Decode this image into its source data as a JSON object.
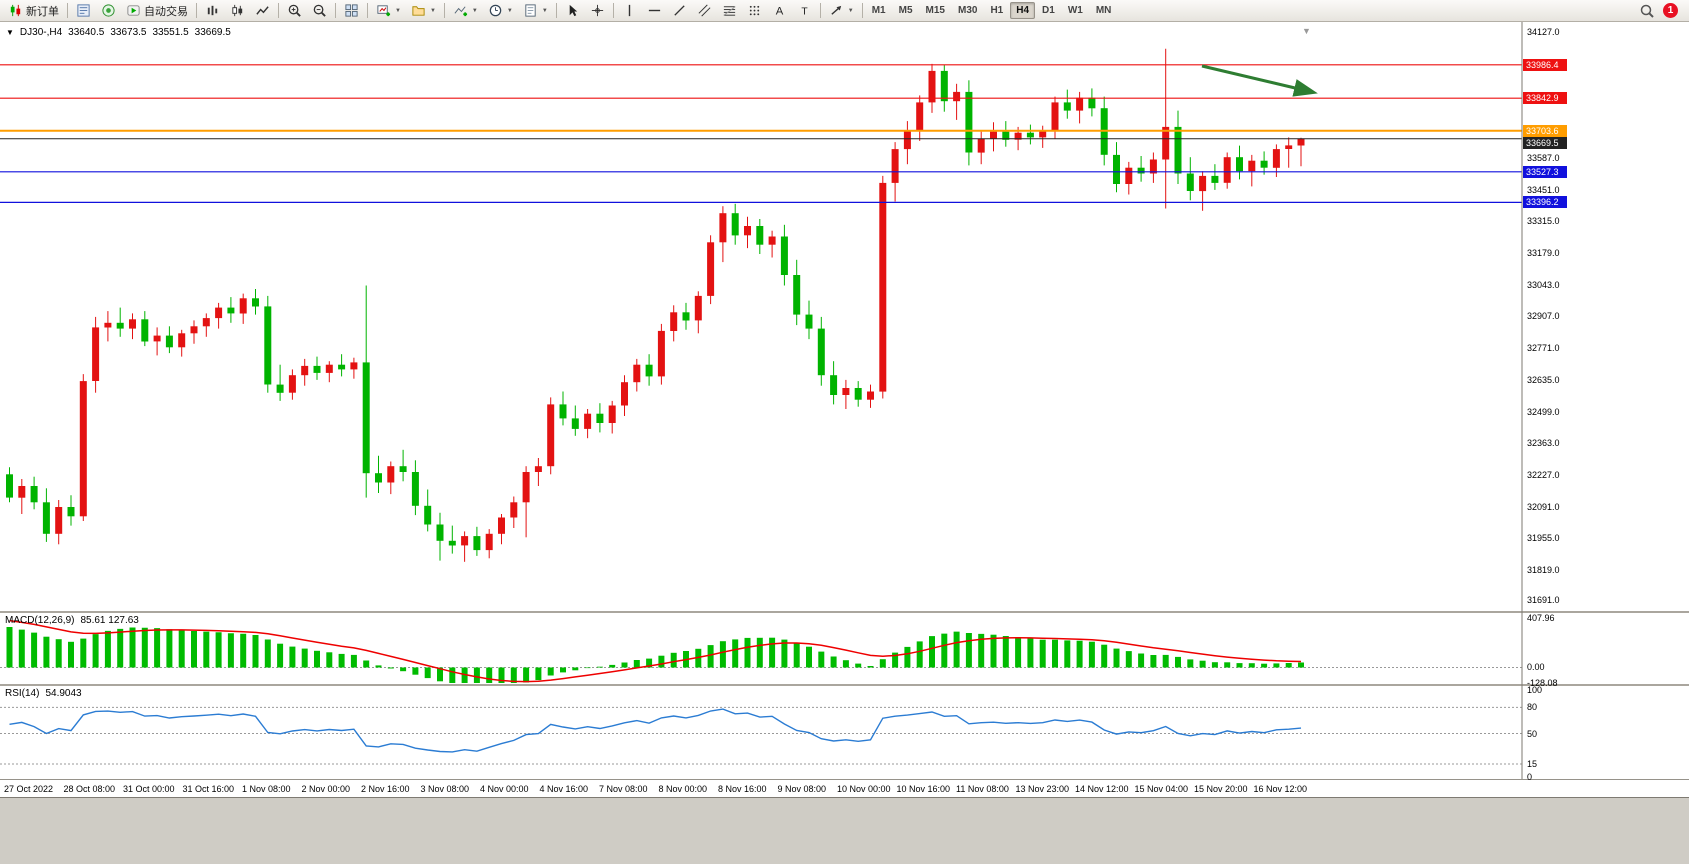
{
  "toolbar": {
    "new_order_label": "新订单",
    "autotrading_label": "自动交易",
    "timeframes": [
      "M1",
      "M5",
      "M15",
      "M30",
      "H1",
      "H4",
      "D1",
      "W1",
      "MN"
    ],
    "active_timeframe": "H4",
    "notification_count": "1"
  },
  "chart": {
    "info": {
      "symbol_period": "DJ30-,H4",
      "open": "33640.5",
      "high": "33673.5",
      "low": "33551.5",
      "close": "33669.5"
    },
    "price_axis": {
      "top_value": 34127.0,
      "bottom_value": 31691.0,
      "labels": [
        "34127.0",
        "33587.0",
        "33451.0",
        "33315.0",
        "33179.0",
        "33043.0",
        "32907.0",
        "32771.0",
        "32635.0",
        "32499.0",
        "32363.0",
        "32227.0",
        "32091.0",
        "31955.0",
        "31819.0",
        "31691.0"
      ],
      "tags": [
        {
          "text": "33986.4",
          "value": 33986.4,
          "color": "#ee1111",
          "width": 1.2,
          "kind": "horizontal-line"
        },
        {
          "text": "33842.9",
          "value": 33842.9,
          "color": "#ee1111",
          "width": 1.2,
          "kind": "horizontal-line"
        },
        {
          "text": "33703.6",
          "value": 33703.6,
          "color": "#ff9d00",
          "width": 2,
          "kind": "horizontal-line"
        },
        {
          "text": "33669.5",
          "value": 33669.5,
          "color": "#222222",
          "width": 1,
          "kind": "current-price"
        },
        {
          "text": "33527.3",
          "value": 33527.3,
          "color": "#1111dd",
          "width": 1.2,
          "kind": "horizontal-line"
        },
        {
          "text": "33396.2",
          "value": 33396.2,
          "color": "#1111dd",
          "width": 1.2,
          "kind": "horizontal-line"
        }
      ]
    },
    "time_axis": [
      "27 Oct 2022",
      "28 Oct 08:00",
      "31 Oct 00:00",
      "31 Oct 16:00",
      "1 Nov 08:00",
      "2 Nov 00:00",
      "2 Nov 16:00",
      "3 Nov 08:00",
      "4 Nov 00:00",
      "4 Nov 16:00",
      "7 Nov 08:00",
      "8 Nov 00:00",
      "8 Nov 16:00",
      "9 Nov 08:00",
      "10 Nov 00:00",
      "10 Nov 16:00",
      "11 Nov 08:00",
      "13 Nov 23:00",
      "14 Nov 12:00",
      "15 Nov 04:00",
      "15 Nov 20:00",
      "16 Nov 12:00"
    ],
    "annotation_arrow_color": "#2e7d32"
  },
  "indicators": {
    "macd": {
      "name": "MACD(12,26,9)",
      "values": "85.61 127.63",
      "axis": [
        "407.96",
        "0.00",
        "-128.08"
      ],
      "max": 407.96,
      "min": -128.08,
      "histogram_color": "#00bb00",
      "signal_color": "#ee0000"
    },
    "rsi": {
      "name": "RSI(14)",
      "value": "54.9043",
      "axis": [
        "100",
        "80",
        "50",
        "15",
        "0"
      ],
      "levels": [
        80,
        50,
        15
      ],
      "line_color": "#2b7cd3"
    }
  },
  "chart_data": {
    "type": "candlestick",
    "symbol": "DJ30-",
    "timeframe": "H4",
    "convention": "red = bullish, green = bearish",
    "up_color": "#e31212",
    "down_color": "#00b300",
    "price_range": [
      31691.0,
      34127.0
    ],
    "last": {
      "open": 33640.5,
      "high": 33673.5,
      "low": 33551.5,
      "close": 33669.5
    },
    "ohlc": [
      [
        32230,
        32260,
        32110,
        32130
      ],
      [
        32130,
        32210,
        32060,
        32180
      ],
      [
        32180,
        32220,
        32080,
        32110
      ],
      [
        32110,
        32170,
        31940,
        31975
      ],
      [
        31975,
        32120,
        31930,
        32090
      ],
      [
        32090,
        32140,
        32010,
        32050
      ],
      [
        32050,
        32660,
        32030,
        32630
      ],
      [
        32630,
        32905,
        32580,
        32860
      ],
      [
        32860,
        32930,
        32800,
        32880
      ],
      [
        32880,
        32945,
        32820,
        32855
      ],
      [
        32855,
        32920,
        32810,
        32895
      ],
      [
        32895,
        32930,
        32780,
        32800
      ],
      [
        32800,
        32860,
        32740,
        32825
      ],
      [
        32825,
        32865,
        32750,
        32775
      ],
      [
        32775,
        32850,
        32735,
        32835
      ],
      [
        32835,
        32890,
        32790,
        32865
      ],
      [
        32865,
        32920,
        32820,
        32900
      ],
      [
        32900,
        32965,
        32855,
        32945
      ],
      [
        32945,
        32990,
        32880,
        32920
      ],
      [
        32920,
        33005,
        32875,
        32985
      ],
      [
        32985,
        33025,
        32915,
        32950
      ],
      [
        32950,
        32995,
        32580,
        32615
      ],
      [
        32615,
        32700,
        32545,
        32580
      ],
      [
        32580,
        32680,
        32550,
        32655
      ],
      [
        32655,
        32725,
        32610,
        32695
      ],
      [
        32695,
        32735,
        32635,
        32665
      ],
      [
        32665,
        32715,
        32625,
        32700
      ],
      [
        32700,
        32745,
        32650,
        32680
      ],
      [
        32680,
        32730,
        32640,
        32710
      ],
      [
        32710,
        33040,
        32130,
        32235
      ],
      [
        32235,
        32310,
        32150,
        32195
      ],
      [
        32195,
        32285,
        32145,
        32265
      ],
      [
        32265,
        32335,
        32200,
        32240
      ],
      [
        32240,
        32290,
        32055,
        32095
      ],
      [
        32095,
        32165,
        31985,
        32015
      ],
      [
        32015,
        32065,
        31860,
        31945
      ],
      [
        31945,
        32010,
        31890,
        31925
      ],
      [
        31925,
        31985,
        31855,
        31965
      ],
      [
        31965,
        32005,
        31880,
        31905
      ],
      [
        31905,
        31995,
        31870,
        31975
      ],
      [
        31975,
        32060,
        31930,
        32045
      ],
      [
        32045,
        32135,
        32000,
        32110
      ],
      [
        32110,
        32265,
        31960,
        32240
      ],
      [
        32240,
        32300,
        32180,
        32265
      ],
      [
        32265,
        32560,
        32230,
        32530
      ],
      [
        32530,
        32585,
        32440,
        32470
      ],
      [
        32470,
        32525,
        32395,
        32425
      ],
      [
        32425,
        32510,
        32385,
        32490
      ],
      [
        32490,
        32535,
        32410,
        32450
      ],
      [
        32450,
        32545,
        32405,
        32525
      ],
      [
        32525,
        32655,
        32480,
        32625
      ],
      [
        32625,
        32725,
        32585,
        32700
      ],
      [
        32700,
        32745,
        32610,
        32650
      ],
      [
        32650,
        32875,
        32615,
        32845
      ],
      [
        32845,
        32955,
        32800,
        32925
      ],
      [
        32925,
        32965,
        32850,
        32890
      ],
      [
        32890,
        33015,
        32835,
        32995
      ],
      [
        32995,
        33255,
        32960,
        33225
      ],
      [
        33225,
        33380,
        33140,
        33350
      ],
      [
        33350,
        33390,
        33215,
        33255
      ],
      [
        33255,
        33335,
        33200,
        33295
      ],
      [
        33295,
        33325,
        33175,
        33215
      ],
      [
        33215,
        33275,
        33160,
        33250
      ],
      [
        33250,
        33300,
        33040,
        33085
      ],
      [
        33085,
        33150,
        32870,
        32915
      ],
      [
        32915,
        32975,
        32810,
        32855
      ],
      [
        32855,
        32905,
        32610,
        32655
      ],
      [
        32655,
        32715,
        32530,
        32570
      ],
      [
        32570,
        32635,
        32510,
        32600
      ],
      [
        32600,
        32630,
        32520,
        32550
      ],
      [
        32550,
        32615,
        32515,
        32585
      ],
      [
        32585,
        33510,
        32555,
        33480
      ],
      [
        33480,
        33655,
        33400,
        33625
      ],
      [
        33625,
        33745,
        33560,
        33705
      ],
      [
        33705,
        33855,
        33660,
        33825
      ],
      [
        33825,
        33990,
        33780,
        33960
      ],
      [
        33960,
        33985,
        33785,
        33830
      ],
      [
        33830,
        33905,
        33750,
        33870
      ],
      [
        33870,
        33920,
        33555,
        33610
      ],
      [
        33610,
        33700,
        33560,
        33670
      ],
      [
        33670,
        33740,
        33615,
        33700
      ],
      [
        33700,
        33745,
        33635,
        33665
      ],
      [
        33665,
        33720,
        33620,
        33695
      ],
      [
        33695,
        33730,
        33645,
        33675
      ],
      [
        33675,
        33725,
        33630,
        33705
      ],
      [
        33705,
        33850,
        33670,
        33825
      ],
      [
        33825,
        33880,
        33755,
        33790
      ],
      [
        33790,
        33870,
        33735,
        33845
      ],
      [
        33845,
        33885,
        33765,
        33800
      ],
      [
        33800,
        33850,
        33555,
        33600
      ],
      [
        33600,
        33655,
        33440,
        33475
      ],
      [
        33475,
        33570,
        33430,
        33545
      ],
      [
        33545,
        33595,
        33485,
        33520
      ],
      [
        33520,
        33610,
        33480,
        33580
      ],
      [
        33580,
        34055,
        33370,
        33720
      ],
      [
        33720,
        33790,
        33475,
        33520
      ],
      [
        33520,
        33590,
        33405,
        33445
      ],
      [
        33445,
        33530,
        33360,
        33510
      ],
      [
        33510,
        33560,
        33450,
        33480
      ],
      [
        33480,
        33610,
        33455,
        33590
      ],
      [
        33590,
        33640,
        33495,
        33530
      ],
      [
        33530,
        33600,
        33465,
        33575
      ],
      [
        33575,
        33615,
        33515,
        33545
      ],
      [
        33545,
        33645,
        33505,
        33625
      ],
      [
        33625,
        33675,
        33545,
        33640.5
      ],
      [
        33640.5,
        33673.5,
        33551.5,
        33669.5
      ]
    ]
  }
}
